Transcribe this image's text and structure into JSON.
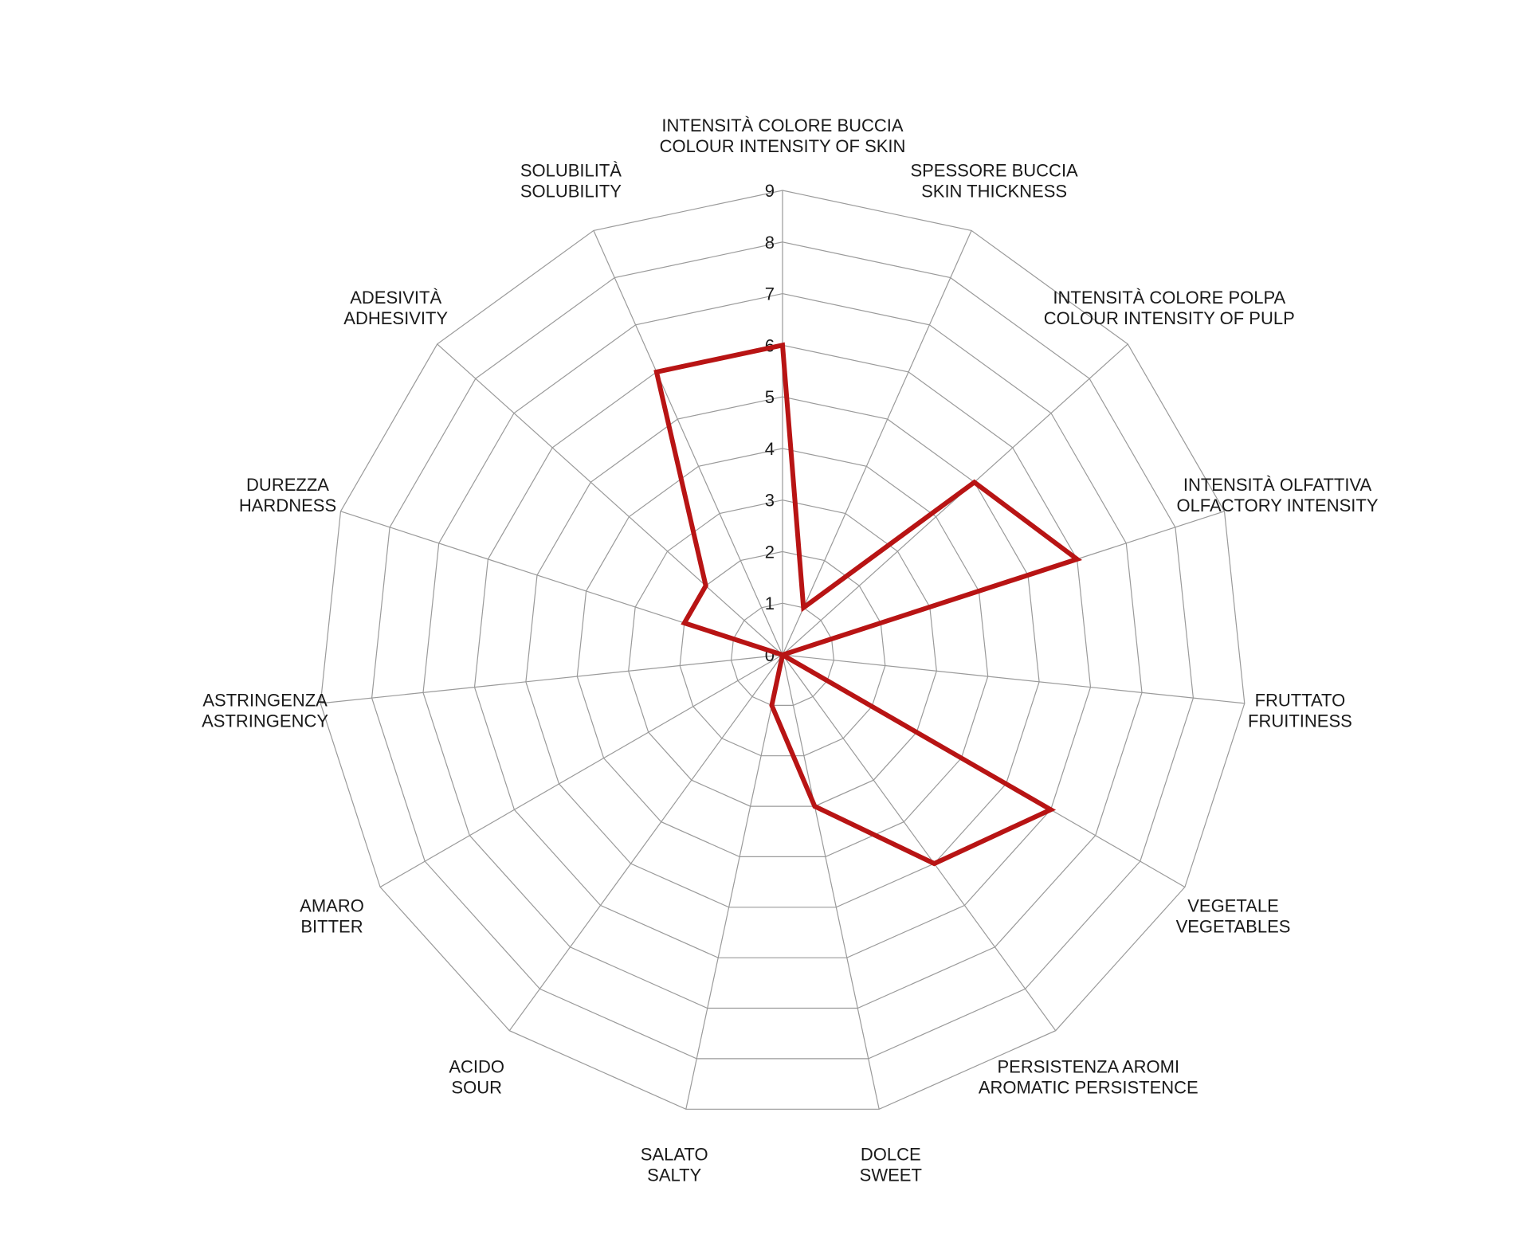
{
  "chart_data": {
    "type": "radar",
    "axes": [
      {
        "line1": "INTENSITÀ COLORE BUCCIA",
        "line2": "COLOUR INTENSITY OF SKIN"
      },
      {
        "line1": "SPESSORE BUCCIA",
        "line2": "SKIN THICKNESS"
      },
      {
        "line1": "INTENSITÀ COLORE POLPA",
        "line2": "COLOUR INTENSITY OF PULP"
      },
      {
        "line1": "INTENSITÀ OLFATTIVA",
        "line2": "OLFACTORY INTENSITY"
      },
      {
        "line1": "FRUTTATO",
        "line2": "FRUITINESS"
      },
      {
        "line1": "VEGETALE",
        "line2": "VEGETABLES"
      },
      {
        "line1": "PERSISTENZA AROMI",
        "line2": "AROMATIC PERSISTENCE"
      },
      {
        "line1": "DOLCE",
        "line2": "SWEET"
      },
      {
        "line1": "SALATO",
        "line2": "SALTY"
      },
      {
        "line1": "ACIDO",
        "line2": "SOUR"
      },
      {
        "line1": "AMARO",
        "line2": "BITTER"
      },
      {
        "line1": "ASTRINGENZA",
        "line2": "ASTRINGENCY"
      },
      {
        "line1": "DUREZZA",
        "line2": "HARDNESS"
      },
      {
        "line1": "ADESIVITÀ",
        "line2": "ADHESIVITY"
      },
      {
        "line1": "SOLUBILITÀ",
        "line2": "SOLUBILITY"
      }
    ],
    "ticks": [
      "0",
      "1",
      "2",
      "3",
      "4",
      "5",
      "6",
      "7",
      "8",
      "9"
    ],
    "rmax": 9,
    "series": [
      {
        "values": [
          6,
          1,
          5,
          6,
          0,
          6,
          5,
          3,
          1,
          0,
          0,
          0,
          2,
          2,
          6
        ],
        "color": "#b81414"
      }
    ],
    "grid": true
  }
}
